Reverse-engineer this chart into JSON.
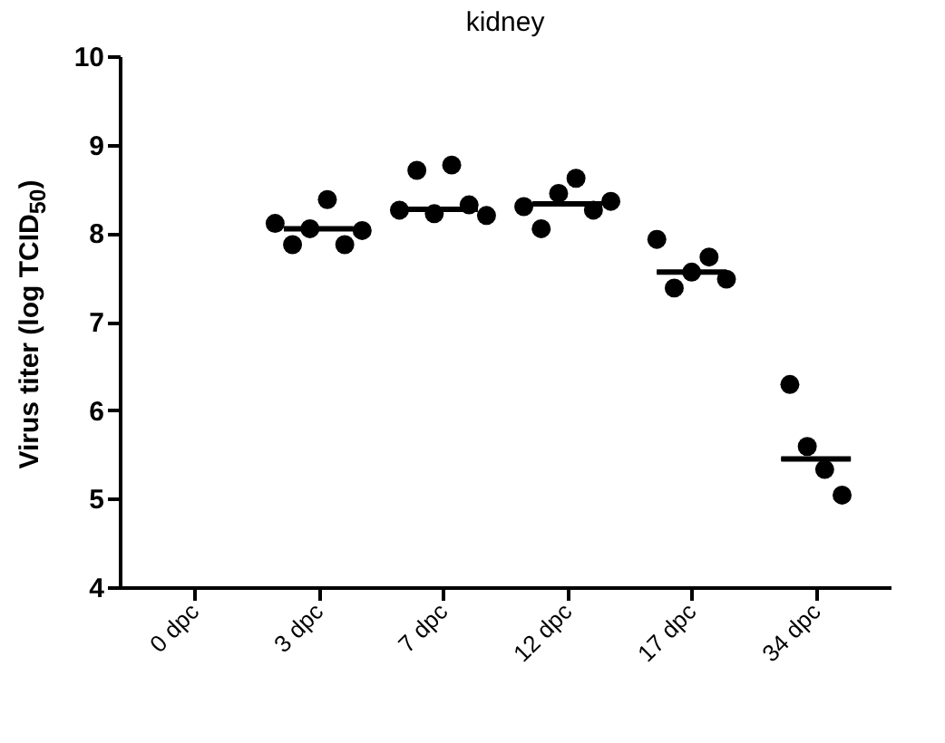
{
  "chart_data": {
    "type": "box",
    "title": "kidney",
    "ylabel": "Virus titer (log TCID$_{50}$)",
    "categories": [
      "0 dpc",
      "3 dpc",
      "7 dpc",
      "12 dpc",
      "17 dpc",
      "34 dpc"
    ],
    "grid": false,
    "ylim": [
      4,
      10
    ],
    "yticks": [
      4,
      5,
      6,
      7,
      8,
      9,
      10
    ],
    "marker": "circle",
    "series": [
      {
        "type": "scatter",
        "color": "#000000",
        "x": [
          "3 dpc",
          "3 dpc",
          "3 dpc",
          "3 dpc",
          "3 dpc",
          "3 dpc",
          "7 dpc",
          "7 dpc",
          "7 dpc",
          "7 dpc",
          "7 dpc",
          "7 dpc",
          "12 dpc",
          "12 dpc",
          "12 dpc",
          "12 dpc",
          "12 dpc",
          "12 dpc",
          "17 dpc",
          "17 dpc",
          "17 dpc",
          "17 dpc",
          "17 dpc",
          "34 dpc",
          "34 dpc",
          "34 dpc",
          "34 dpc"
        ],
        "values": [
          8.11,
          7.87,
          8.05,
          8.38,
          7.87,
          8.03,
          8.26,
          8.71,
          8.22,
          8.77,
          8.32,
          8.2,
          8.3,
          8.05,
          8.45,
          8.62,
          8.26,
          8.36,
          7.93,
          7.38,
          7.56,
          7.73,
          7.48,
          6.29,
          5.59,
          5.33,
          5.04
        ]
      }
    ],
    "boxes": [
      null,
      {
        "low": 8.05,
        "q1": 8.05,
        "median": 8.05,
        "q3": 8.05,
        "high": 8.05
      },
      {
        "low": 8.27,
        "q1": 8.27,
        "median": 8.27,
        "q3": 8.27,
        "high": 8.27
      },
      {
        "low": 8.33,
        "q1": 8.33,
        "median": 8.33,
        "q3": 8.33,
        "high": 8.33
      },
      {
        "low": 7.56,
        "q1": 7.56,
        "median": 7.56,
        "q3": 7.56,
        "high": 7.56
      },
      {
        "low": 5.45,
        "q1": 5.45,
        "median": 5.45,
        "q3": 5.45,
        "high": 5.45
      }
    ]
  }
}
